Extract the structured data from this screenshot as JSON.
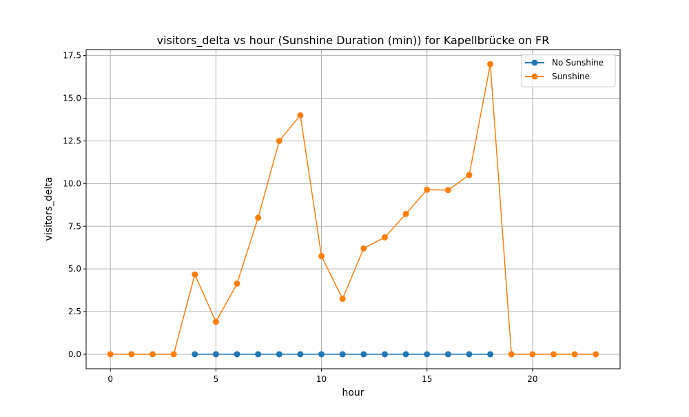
{
  "chart_data": {
    "type": "line",
    "title": "visitors_delta vs hour (Sunshine Duration (min)) for Kapellbrücke on FR",
    "xlabel": "hour",
    "ylabel": "visitors_delta",
    "xlim": [
      -1.15,
      24.15
    ],
    "ylim": [
      -0.85,
      17.85
    ],
    "xticks": [
      0,
      5,
      10,
      15,
      20
    ],
    "xtick_labels": [
      "0",
      "5",
      "10",
      "15",
      "20"
    ],
    "yticks": [
      0,
      2.5,
      5,
      7.5,
      10,
      12.5,
      15,
      17.5
    ],
    "ytick_labels": [
      "0.0",
      "2.5",
      "5.0",
      "7.5",
      "10.0",
      "12.5",
      "15.0",
      "17.5"
    ],
    "grid": true,
    "legend_position": "top-right",
    "series": [
      {
        "name": "No Sunshine",
        "color": "#1f77b4",
        "x": [
          4,
          5,
          6,
          7,
          8,
          9,
          10,
          11,
          12,
          13,
          14,
          15,
          16,
          17,
          18
        ],
        "y": [
          0,
          0,
          0,
          0,
          0,
          0,
          0,
          0,
          0,
          0,
          0,
          0,
          0,
          0,
          0
        ]
      },
      {
        "name": "Sunshine",
        "color": "#ff7f0e",
        "x": [
          0,
          1,
          2,
          3,
          4,
          5,
          6,
          7,
          8,
          9,
          10,
          11,
          12,
          13,
          14,
          15,
          16,
          17,
          18,
          19,
          20,
          21,
          22,
          23
        ],
        "y": [
          0,
          0,
          0,
          0,
          4.67,
          1.9,
          4.14,
          8.0,
          12.5,
          14.0,
          5.75,
          3.25,
          6.2,
          6.85,
          8.22,
          9.64,
          9.62,
          10.5,
          17.0,
          0,
          0,
          0,
          0,
          0
        ]
      }
    ]
  }
}
